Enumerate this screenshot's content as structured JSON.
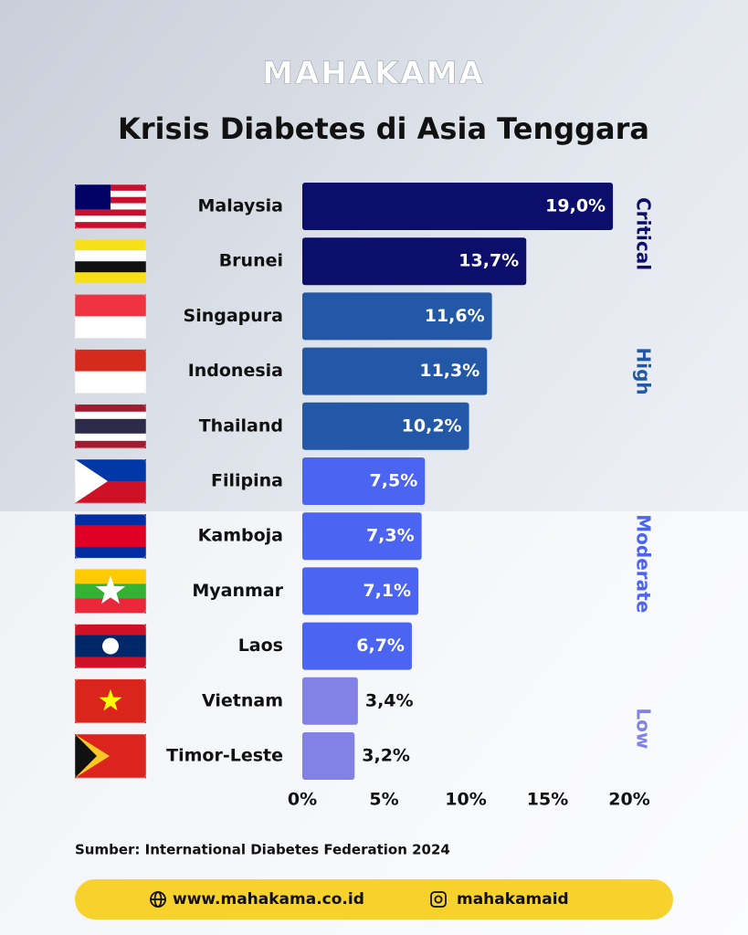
{
  "brand": "MAHAKAMA",
  "chart_data": {
    "type": "bar",
    "orientation": "horizontal",
    "title": "Krisis Diabetes di Asia Tenggara",
    "categories": [
      "Malaysia",
      "Brunei",
      "Singapura",
      "Indonesia",
      "Thailand",
      "Filipina",
      "Kamboja",
      "Myanmar",
      "Laos",
      "Vietnam",
      "Timor-Leste"
    ],
    "series": [
      {
        "name": "Critical",
        "color": "#0b0e6b",
        "values": [
          19.0,
          13.7,
          null,
          null,
          null,
          null,
          null,
          null,
          null,
          null,
          null
        ],
        "value_labels": [
          "19,0%",
          "13,7%",
          null,
          null,
          null,
          null,
          null,
          null,
          null,
          null,
          null
        ]
      },
      {
        "name": "High",
        "color": "#2358a8",
        "values": [
          null,
          null,
          11.6,
          11.3,
          10.2,
          null,
          null,
          null,
          null,
          null,
          null
        ],
        "value_labels": [
          null,
          null,
          "11,6%",
          "11,3%",
          "10,2%",
          null,
          null,
          null,
          null,
          null,
          null
        ]
      },
      {
        "name": "Moderate",
        "color": "#4b64f2",
        "values": [
          null,
          null,
          null,
          null,
          null,
          7.5,
          7.3,
          7.1,
          6.7,
          null,
          null
        ],
        "value_labels": [
          null,
          null,
          null,
          null,
          null,
          "7,5%",
          "7,3%",
          "7,1%",
          "6,7%",
          null,
          null
        ]
      },
      {
        "name": "Low",
        "color": "#8282e6",
        "values": [
          null,
          null,
          null,
          null,
          null,
          null,
          null,
          null,
          null,
          3.4,
          3.2
        ],
        "value_labels": [
          null,
          null,
          null,
          null,
          null,
          null,
          null,
          null,
          null,
          "3,4%",
          "3,2%"
        ]
      }
    ],
    "xlim": [
      0,
      20
    ],
    "xticks": [
      {
        "value": 0,
        "label": "0%"
      },
      {
        "value": 5,
        "label": "5%"
      },
      {
        "value": 10,
        "label": "10%"
      },
      {
        "value": 15,
        "label": "15%"
      },
      {
        "value": 20,
        "label": "20%"
      }
    ],
    "source": "Sumber: International Diabetes Federation 2024"
  },
  "footer": {
    "website": "www.mahakama.co.id",
    "instagram": "mahakamaid"
  }
}
